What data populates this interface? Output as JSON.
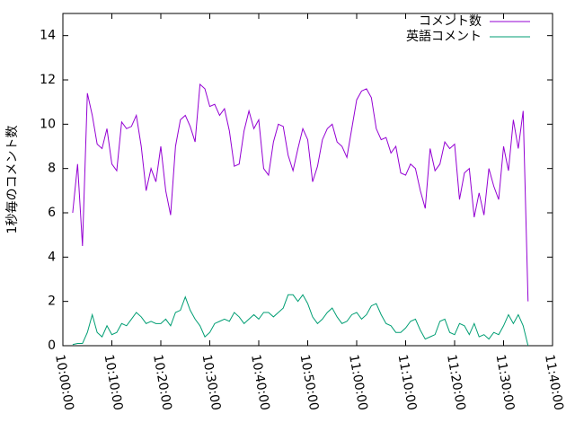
{
  "chart_data": {
    "type": "line",
    "ylabel": "1秒毎のコメント数",
    "x": [
      "10:02:00",
      "10:03:00",
      "10:04:00",
      "10:05:00",
      "10:06:00",
      "10:07:00",
      "10:08:00",
      "10:09:00",
      "10:10:00",
      "10:11:00",
      "10:12:00",
      "10:13:00",
      "10:14:00",
      "10:15:00",
      "10:16:00",
      "10:17:00",
      "10:18:00",
      "10:19:00",
      "10:20:00",
      "10:21:00",
      "10:22:00",
      "10:23:00",
      "10:24:00",
      "10:25:00",
      "10:26:00",
      "10:27:00",
      "10:28:00",
      "10:29:00",
      "10:30:00",
      "10:31:00",
      "10:32:00",
      "10:33:00",
      "10:34:00",
      "10:35:00",
      "10:36:00",
      "10:37:00",
      "10:38:00",
      "10:39:00",
      "10:40:00",
      "10:41:00",
      "10:42:00",
      "10:43:00",
      "10:44:00",
      "10:45:00",
      "10:46:00",
      "10:47:00",
      "10:48:00",
      "10:49:00",
      "10:50:00",
      "10:51:00",
      "10:52:00",
      "10:53:00",
      "10:54:00",
      "10:55:00",
      "10:56:00",
      "10:57:00",
      "10:58:00",
      "10:59:00",
      "11:00:00",
      "11:01:00",
      "11:02:00",
      "11:03:00",
      "11:04:00",
      "11:05:00",
      "11:06:00",
      "11:07:00",
      "11:08:00",
      "11:09:00",
      "11:10:00",
      "11:11:00",
      "11:12:00",
      "11:13:00",
      "11:14:00",
      "11:15:00",
      "11:16:00",
      "11:17:00",
      "11:18:00",
      "11:19:00",
      "11:20:00",
      "11:21:00",
      "11:22:00",
      "11:23:00",
      "11:24:00",
      "11:25:00",
      "11:26:00",
      "11:27:00",
      "11:28:00",
      "11:29:00",
      "11:30:00",
      "11:31:00",
      "11:32:00",
      "11:33:00",
      "11:34:00",
      "11:35:00"
    ],
    "series": [
      {
        "name": "コメント数",
        "color": "#9400d3",
        "values": [
          6.0,
          8.2,
          4.5,
          11.4,
          10.4,
          9.1,
          8.9,
          9.8,
          8.2,
          7.9,
          10.1,
          9.8,
          9.9,
          10.4,
          9.0,
          7.0,
          8.0,
          7.4,
          9.0,
          7.0,
          5.9,
          9.0,
          10.2,
          10.4,
          9.9,
          9.2,
          11.8,
          11.6,
          10.8,
          10.9,
          10.4,
          10.7,
          9.7,
          8.1,
          8.2,
          9.7,
          10.6,
          9.8,
          10.2,
          8.0,
          7.7,
          9.2,
          10.0,
          9.9,
          8.6,
          7.9,
          8.9,
          9.8,
          9.3,
          7.4,
          8.1,
          9.3,
          9.8,
          10.0,
          9.2,
          9.0,
          8.5,
          9.8,
          11.1,
          11.5,
          11.6,
          11.2,
          9.8,
          9.3,
          9.4,
          8.7,
          9.0,
          7.8,
          7.7,
          8.2,
          8.0,
          7.0,
          6.2,
          8.9,
          7.9,
          8.2,
          9.2,
          8.9,
          9.1,
          6.6,
          7.8,
          8.0,
          5.8,
          6.9,
          5.9,
          8.0,
          7.2,
          6.6,
          9.0,
          7.9,
          10.2,
          8.9,
          10.6,
          2.0
        ]
      },
      {
        "name": "英語コメント",
        "color": "#009e73",
        "values": [
          0.05,
          0.1,
          0.1,
          0.6,
          1.4,
          0.6,
          0.4,
          0.9,
          0.5,
          0.6,
          1.0,
          0.9,
          1.2,
          1.5,
          1.3,
          1.0,
          1.1,
          1.0,
          1.0,
          1.2,
          0.9,
          1.5,
          1.6,
          2.2,
          1.6,
          1.2,
          0.9,
          0.4,
          0.6,
          1.0,
          1.1,
          1.2,
          1.1,
          1.5,
          1.3,
          1.0,
          1.2,
          1.4,
          1.2,
          1.5,
          1.5,
          1.3,
          1.5,
          1.7,
          2.3,
          2.3,
          2.0,
          2.3,
          1.9,
          1.3,
          1.0,
          1.2,
          1.5,
          1.7,
          1.3,
          1.0,
          1.1,
          1.4,
          1.5,
          1.2,
          1.4,
          1.8,
          1.9,
          1.4,
          1.0,
          0.9,
          0.6,
          0.6,
          0.8,
          1.1,
          1.2,
          0.7,
          0.3,
          0.4,
          0.5,
          1.1,
          1.2,
          0.6,
          0.5,
          1.0,
          0.9,
          0.5,
          1.0,
          0.4,
          0.5,
          0.3,
          0.6,
          0.5,
          0.9,
          1.4,
          1.0,
          1.4,
          0.9,
          0.0
        ]
      }
    ],
    "xlim": [
      "10:00:00",
      "11:40:00"
    ],
    "xticks": [
      "10:00:00",
      "10:10:00",
      "10:20:00",
      "10:30:00",
      "10:40:00",
      "10:50:00",
      "11:00:00",
      "11:10:00",
      "11:20:00",
      "11:30:00",
      "11:40:00"
    ],
    "ylim": [
      0,
      15
    ],
    "yticks": [
      0,
      2,
      4,
      6,
      8,
      10,
      12,
      14
    ],
    "grid": false,
    "legend": "top-right"
  }
}
